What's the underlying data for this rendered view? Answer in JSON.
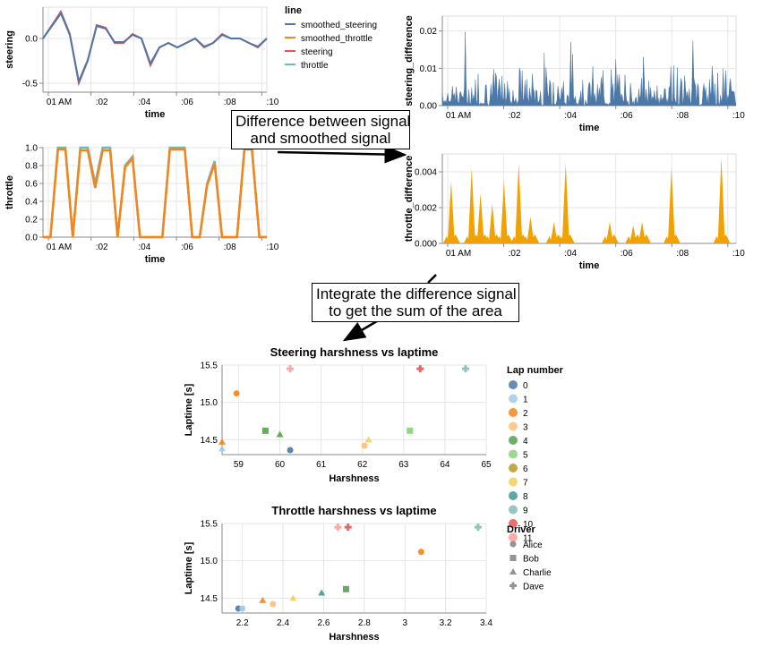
{
  "annotations": {
    "diff_line1": "Difference between signal",
    "diff_line2": "and smoothed signal",
    "integrate_line1": "Integrate the difference signal",
    "integrate_line2": "to get the sum of the area"
  },
  "time_ticks": [
    "01 AM",
    ":02",
    ":04",
    ":06",
    ":08",
    ":10"
  ],
  "chart_data": [
    {
      "type": "line",
      "id": "steering",
      "xlabel": "time",
      "ylabel": "steering",
      "ylim": [
        -0.6,
        0.35
      ],
      "yticks": [
        "0.0",
        "-0.5"
      ],
      "grid": true,
      "legend": {
        "title": "line",
        "entries": [
          "smoothed_steering",
          "smoothed_throttle",
          "steering",
          "throttle"
        ],
        "colors": [
          "#4c78a8",
          "#f58518",
          "#e45756",
          "#72b7b2"
        ],
        "placement": "right"
      },
      "series": [
        {
          "name": "steering",
          "color": "#e45756",
          "values": [
            0.0,
            0.15,
            0.3,
            0.05,
            -0.5,
            -0.25,
            0.15,
            0.12,
            -0.05,
            -0.05,
            0.05,
            0.0,
            -0.3,
            -0.1,
            -0.05,
            -0.1,
            -0.05,
            0.0,
            -0.1,
            -0.05,
            0.05,
            0.0,
            0.0,
            -0.05,
            -0.1,
            0.0
          ]
        },
        {
          "name": "smoothed_steering",
          "color": "#4c78a8",
          "values": [
            0.0,
            0.14,
            0.28,
            0.04,
            -0.48,
            -0.24,
            0.14,
            0.11,
            -0.04,
            -0.04,
            0.04,
            0.0,
            -0.28,
            -0.1,
            -0.05,
            -0.1,
            -0.05,
            0.0,
            -0.09,
            -0.05,
            0.04,
            0.0,
            0.0,
            -0.05,
            -0.09,
            0.0
          ]
        }
      ]
    },
    {
      "type": "line",
      "id": "throttle",
      "xlabel": "time",
      "ylabel": "throttle",
      "ylim": [
        0,
        1
      ],
      "yticks": [
        "0.0",
        "0.2",
        "0.4",
        "0.6",
        "0.8",
        "1.0"
      ],
      "grid": true,
      "series": [
        {
          "name": "throttle",
          "color": "#72b7b2",
          "values": [
            0,
            0,
            1,
            1,
            0,
            1,
            1,
            0.6,
            1,
            1,
            0,
            0.8,
            0.9,
            0,
            0,
            0,
            0,
            1,
            1,
            1,
            0,
            0,
            0.6,
            0.85,
            0,
            0,
            0,
            1,
            1,
            0,
            0
          ]
        },
        {
          "name": "smoothed_throttle",
          "color": "#f58518",
          "values": [
            0,
            0,
            0.98,
            0.98,
            0,
            0.97,
            0.97,
            0.55,
            0.97,
            0.97,
            0,
            0.78,
            0.88,
            0,
            0,
            0,
            0,
            0.98,
            0.98,
            0.98,
            0,
            0,
            0.58,
            0.82,
            0,
            0,
            0,
            0.98,
            0.98,
            0,
            0
          ]
        }
      ]
    },
    {
      "type": "area",
      "id": "steering_difference",
      "xlabel": "time",
      "ylabel": "steering_difference",
      "ylim": [
        0,
        0.024
      ],
      "yticks": [
        "0.00",
        "0.01",
        "0.02"
      ],
      "color": "#4c78a8",
      "grid": true,
      "note_values": "dense noise, peaks up to ~0.022"
    },
    {
      "type": "area",
      "id": "throttle_difference",
      "xlabel": "time",
      "ylabel": "throttle_difference",
      "ylim": [
        0,
        0.005
      ],
      "yticks": [
        "0.000",
        "0.002",
        "0.004"
      ],
      "color": "#f2a200",
      "grid": true,
      "peaks": [
        {
          "t": 0.03,
          "v": 0.0035
        },
        {
          "t": 0.1,
          "v": 0.0042
        },
        {
          "t": 0.13,
          "v": 0.0028
        },
        {
          "t": 0.17,
          "v": 0.0022
        },
        {
          "t": 0.21,
          "v": 0.0035
        },
        {
          "t": 0.26,
          "v": 0.0045
        },
        {
          "t": 0.3,
          "v": 0.0015
        },
        {
          "t": 0.38,
          "v": 0.0012
        },
        {
          "t": 0.42,
          "v": 0.0045
        },
        {
          "t": 0.57,
          "v": 0.0012
        },
        {
          "t": 0.65,
          "v": 0.001
        },
        {
          "t": 0.68,
          "v": 0.0012
        },
        {
          "t": 0.78,
          "v": 0.0042
        },
        {
          "t": 0.95,
          "v": 0.0048
        }
      ]
    },
    {
      "type": "scatter",
      "id": "steering_harshness",
      "title": "Steering harshness vs laptime",
      "xlabel": "Harshness",
      "ylabel": "Laptime [s]",
      "xlim": [
        58.6,
        65
      ],
      "ylim": [
        14.3,
        15.5
      ],
      "xticks": [
        59,
        60,
        61,
        62,
        63,
        64,
        65
      ],
      "yticks": [
        14.5,
        15.0,
        15.5
      ],
      "points": [
        {
          "x": 60.25,
          "y": 14.36,
          "lap": 0,
          "driver": "Alice"
        },
        {
          "x": 58.6,
          "y": 14.38,
          "lap": 1,
          "driver": "Charlie"
        },
        {
          "x": 58.95,
          "y": 15.12,
          "lap": 2,
          "driver": "Alice"
        },
        {
          "x": 58.6,
          "y": 14.47,
          "lap": 2,
          "driver": "Charlie"
        },
        {
          "x": 62.05,
          "y": 14.42,
          "lap": 3,
          "driver": "Alice"
        },
        {
          "x": 59.65,
          "y": 14.62,
          "lap": 4,
          "driver": "Bob"
        },
        {
          "x": 60.0,
          "y": 14.57,
          "lap": 4,
          "driver": "Charlie"
        },
        {
          "x": 63.15,
          "y": 14.62,
          "lap": 5,
          "driver": "Bob"
        },
        {
          "x": 62.15,
          "y": 14.5,
          "lap": 7,
          "driver": "Charlie"
        },
        {
          "x": 64.5,
          "y": 15.45,
          "lap": 9,
          "driver": "Dave"
        },
        {
          "x": 63.4,
          "y": 15.45,
          "lap": 10,
          "driver": "Dave"
        },
        {
          "x": 60.25,
          "y": 15.45,
          "lap": 11,
          "driver": "Dave"
        }
      ]
    },
    {
      "type": "scatter",
      "id": "throttle_harshness",
      "title": "Throttle harshness vs laptime",
      "xlabel": "Harshness",
      "ylabel": "Laptime [s]",
      "xlim": [
        2.1,
        3.4
      ],
      "ylim": [
        14.3,
        15.5
      ],
      "xticks": [
        2.2,
        2.4,
        2.6,
        2.8,
        3.0,
        3.2,
        3.4
      ],
      "yticks": [
        14.5,
        15.0,
        15.5
      ],
      "points": [
        {
          "x": 2.18,
          "y": 14.36,
          "lap": 0,
          "driver": "Alice"
        },
        {
          "x": 2.2,
          "y": 14.36,
          "lap": 1,
          "driver": "Alice"
        },
        {
          "x": 3.08,
          "y": 15.12,
          "lap": 2,
          "driver": "Alice"
        },
        {
          "x": 2.3,
          "y": 14.47,
          "lap": 2,
          "driver": "Charlie"
        },
        {
          "x": 2.35,
          "y": 14.42,
          "lap": 3,
          "driver": "Alice"
        },
        {
          "x": 2.71,
          "y": 14.62,
          "lap": 4,
          "driver": "Bob"
        },
        {
          "x": 2.59,
          "y": 14.57,
          "lap": 8,
          "driver": "Charlie"
        },
        {
          "x": 2.45,
          "y": 14.5,
          "lap": 7,
          "driver": "Charlie"
        },
        {
          "x": 3.36,
          "y": 15.45,
          "lap": 9,
          "driver": "Dave"
        },
        {
          "x": 2.72,
          "y": 15.45,
          "lap": 10,
          "driver": "Dave"
        },
        {
          "x": 2.67,
          "y": 15.45,
          "lap": 11,
          "driver": "Dave"
        }
      ]
    }
  ],
  "legend_laps": {
    "title": "Lap number",
    "entries": [
      "0",
      "1",
      "2",
      "3",
      "4",
      "5",
      "6",
      "7",
      "8",
      "9",
      "10",
      "11"
    ],
    "colors": [
      "#4c78a8",
      "#9ecae9",
      "#f58518",
      "#ffbf79",
      "#54a24b",
      "#88d27a",
      "#b79a20",
      "#f2cf5b",
      "#439894",
      "#83bcb6",
      "#e45756",
      "#ff9d98"
    ]
  },
  "legend_drivers": {
    "title": "Driver",
    "entries": [
      "Alice",
      "Bob",
      "Charlie",
      "Dave"
    ],
    "shapes": [
      "circle",
      "square",
      "triangle",
      "cross"
    ]
  }
}
